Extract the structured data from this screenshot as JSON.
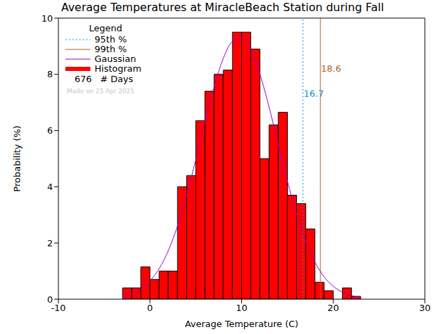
{
  "chart_data": {
    "type": "histogram",
    "title": "Average Temperatures at MiracleBeach Station during Fall",
    "x_label": "Average Temperature (C)",
    "y_label": "Probability (%)",
    "name": "Histogram",
    "color": "#ff0000",
    "bins": [
      -3,
      -2,
      -1,
      0,
      1,
      2,
      3,
      4,
      5,
      6,
      7,
      8,
      9,
      10,
      11,
      12,
      13,
      14,
      15,
      16,
      17,
      18,
      19,
      20,
      21,
      22,
      23
    ],
    "values": [
      0.4,
      0.4,
      1.15,
      0.7,
      1.0,
      1.0,
      4.0,
      4.4,
      6.35,
      7.4,
      8.0,
      8.15,
      9.5,
      9.5,
      8.9,
      5.0,
      6.2,
      6.65,
      3.7,
      3.4,
      2.5,
      0.6,
      0.3,
      0,
      0.4,
      0.1
    ],
    "xlim": [
      -10,
      30
    ],
    "xticks": [
      -10,
      0,
      10,
      20,
      30
    ],
    "ylim": [
      0,
      10
    ],
    "yticks": [
      0,
      2,
      4,
      6,
      8,
      10
    ],
    "legend": "top-left",
    "legend_title": "Legend",
    "series": [
      {
        "name": "Gaussian",
        "type": "line",
        "color": "#9900cc",
        "x": [
          -3,
          -2,
          -1,
          0,
          1,
          2,
          3,
          4,
          5,
          6,
          7,
          8,
          9,
          10,
          11,
          12,
          13,
          14,
          15,
          16,
          17,
          18,
          19,
          20,
          21,
          22,
          23
        ],
        "values": [
          0.1,
          0.19,
          0.36,
          0.65,
          1.09,
          1.73,
          2.6,
          3.7,
          4.97,
          6.31,
          7.56,
          8.57,
          9.17,
          9.28,
          8.86,
          8.0,
          6.83,
          5.51,
          4.2,
          3.02,
          2.05,
          1.32,
          0.8,
          0.46,
          0.25,
          0.13,
          0.06
        ]
      }
    ],
    "reference_lines": [
      {
        "name": "95th %",
        "value": 16.7,
        "color": "#0099cc",
        "line_style": "dotted"
      },
      {
        "name": "99th %",
        "value": 18.6,
        "color": "#b0602a",
        "line_style": "solid"
      }
    ],
    "annotations": [
      {
        "value": 676,
        "text": "# Days"
      },
      {
        "text": "Made on 25 Apr 2025"
      }
    ]
  }
}
